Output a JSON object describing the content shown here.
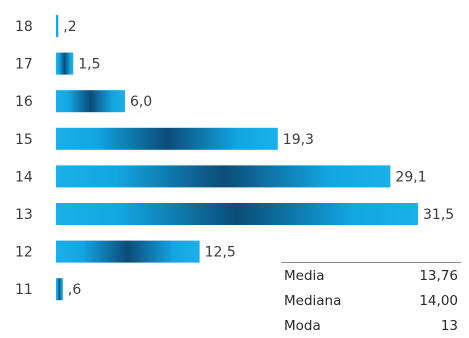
{
  "chart_data": {
    "type": "bar",
    "orientation": "horizontal",
    "categories": [
      "18",
      "17",
      "16",
      "15",
      "14",
      "13",
      "12",
      "11"
    ],
    "values": [
      0.2,
      1.5,
      6.0,
      19.3,
      29.1,
      31.5,
      12.5,
      0.6
    ],
    "value_labels": [
      ",2",
      "1,5",
      "6,0",
      "19,3",
      "29,1",
      "31,5",
      "12,5",
      ",6"
    ],
    "xlim": [
      0,
      31.5
    ],
    "grid": false,
    "bar_color": "#14a8e4",
    "bar_shade_color": "#0a3f66"
  },
  "stats": [
    {
      "label": "Media",
      "value": "13,76"
    },
    {
      "label": "Mediana",
      "value": "14,00"
    },
    {
      "label": "Moda",
      "value": "13"
    }
  ]
}
